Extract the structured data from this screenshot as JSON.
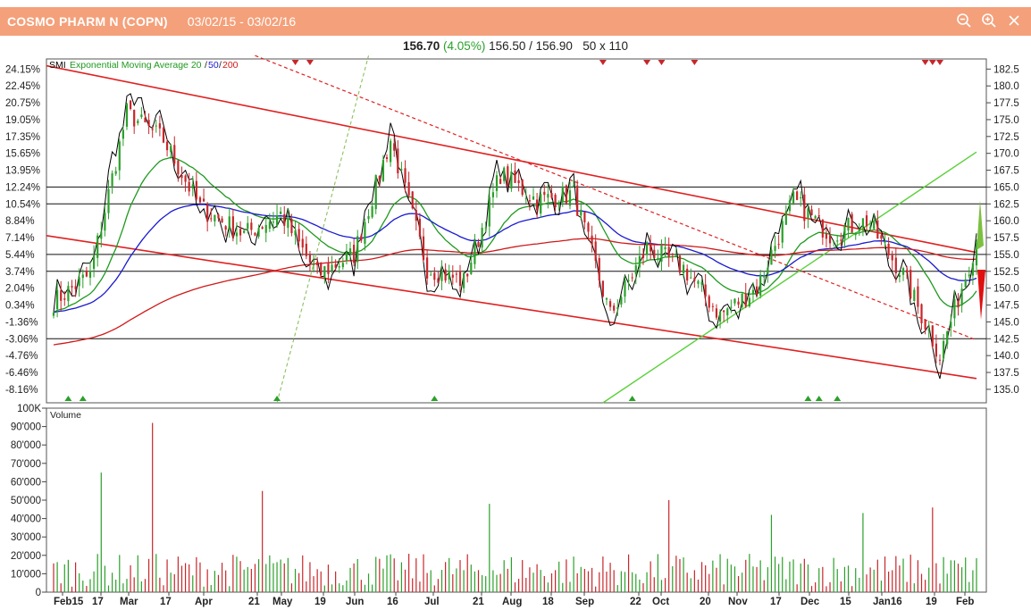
{
  "header": {
    "name": "COSMO PHARM N (COPN)",
    "range": "03/02/15 - 03/02/16",
    "icons": [
      "zoom-out-icon",
      "zoom-in-icon",
      "close-icon"
    ]
  },
  "quote": {
    "last": "156.70",
    "change": "(4.05%)",
    "bid_ask": "156.50 / 156.90",
    "size": "50 x 110"
  },
  "legend": {
    "prefix": "SMI",
    "ema_label": "Exponential Moving Average 20",
    "p50": "50",
    "p200": "200",
    "volume_label": "Volume"
  },
  "colors": {
    "header": "#f4a07a",
    "up": "#2aa02a",
    "down": "#c8262a",
    "ema20": "#1e9a1e",
    "ema50": "#1a1ad0",
    "ema200": "#d01818",
    "smi": "#000000",
    "trend": "#e02020",
    "trend_green": "#5ad03a"
  },
  "chart_data": [
    {
      "type": "candlestick",
      "title": "COSMO PHARM N (COPN)",
      "right_axis_ticks": [
        "182.5",
        "180.0",
        "177.5",
        "175.0",
        "172.5",
        "170.0",
        "167.5",
        "165.0",
        "162.5",
        "160.0",
        "157.5",
        "155.0",
        "152.5",
        "150.0",
        "147.5",
        "145.0",
        "142.5",
        "140.0",
        "137.5",
        "135.0"
      ],
      "left_axis_ticks": [
        "24.15%",
        "22.45%",
        "20.75%",
        "19.05%",
        "17.35%",
        "15.65%",
        "13.95%",
        "12.24%",
        "10.54%",
        "8.84%",
        "7.14%",
        "5.44%",
        "3.74%",
        "2.04%",
        "0.34%",
        "-1.36%",
        "-3.06%",
        "-4.76%",
        "-6.46%",
        "-8.16%"
      ],
      "ylim": [
        133.0,
        184.0
      ],
      "horizontal_levels": [
        165.0,
        162.5,
        155.0,
        152.5,
        142.5
      ],
      "x_labels": [
        "Feb15",
        "17",
        "Mar",
        "17",
        "Apr",
        "21",
        "May",
        "19",
        "Jun",
        "16",
        "Jul",
        "21",
        "Aug",
        "18",
        "Sep",
        "22",
        "Oct",
        "20",
        "Nov",
        "17",
        "Dec",
        "15",
        "Jan16",
        "19",
        "Feb"
      ],
      "anchors": {
        "t": [
          0,
          10,
          20,
          30,
          40,
          52,
          62,
          72,
          82,
          92,
          102,
          112,
          122,
          132,
          142,
          152,
          162,
          172,
          182,
          192,
          202,
          212,
          222,
          232,
          242,
          252
        ],
        "close": [
          148,
          152,
          176,
          172,
          162,
          158,
          161,
          152,
          155,
          172,
          153,
          151,
          167,
          163,
          164,
          146,
          156,
          153,
          146,
          150,
          163,
          158,
          160,
          152,
          140,
          157
        ]
      },
      "series": [
        {
          "name": "Exponential Moving Average 20"
        },
        {
          "name": "50"
        },
        {
          "name": "200"
        }
      ],
      "last_close": 156.7
    },
    {
      "type": "bar",
      "title": "Volume",
      "y_ticks": [
        "100K",
        "90'000",
        "80'000",
        "70'000",
        "60'000",
        "50'000",
        "40'000",
        "30'000",
        "20'000",
        "10'000",
        "0"
      ],
      "ylim": [
        0,
        100000
      ],
      "notable_volumes": [
        65000,
        92000,
        55000,
        48000,
        50000,
        46000,
        42000,
        43000
      ]
    }
  ]
}
